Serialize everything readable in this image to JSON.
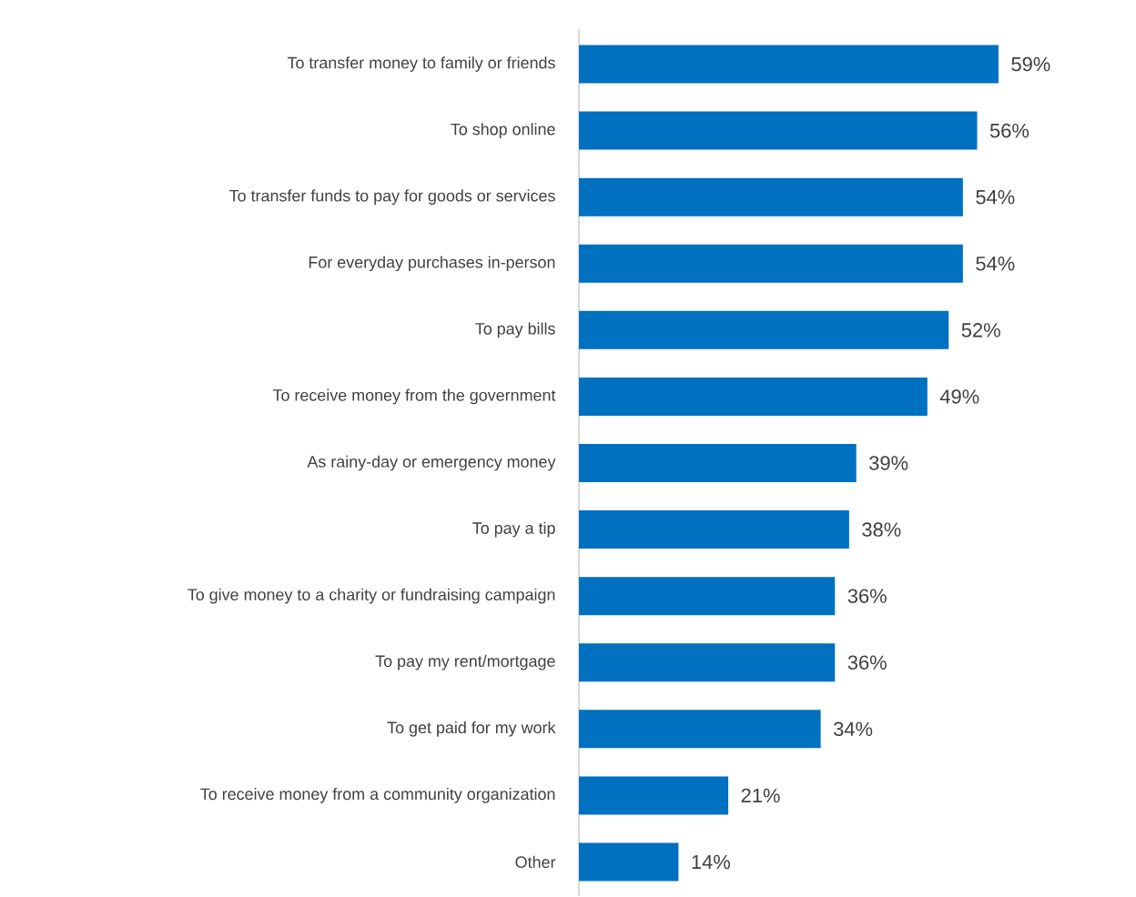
{
  "chart_data": {
    "type": "bar",
    "orientation": "horizontal",
    "categories": [
      "To transfer money to family or friends",
      "To shop online",
      "To transfer funds to pay for goods or services",
      "For everyday purchases in-person",
      "To pay bills",
      "To receive money from the government",
      "As rainy-day or emergency money",
      "To pay a tip",
      "To give money to a charity or fundraising campaign",
      "To pay my rent/mortgage",
      "To get paid for my work",
      "To receive money from a community organization",
      "Other"
    ],
    "values": [
      59,
      56,
      54,
      54,
      52,
      49,
      39,
      38,
      36,
      36,
      34,
      21,
      14
    ],
    "value_labels": [
      "59%",
      "56%",
      "54%",
      "54%",
      "52%",
      "49%",
      "39%",
      "38%",
      "36%",
      "36%",
      "34%",
      "21%",
      "14%"
    ],
    "color": "#0070c0"
  }
}
